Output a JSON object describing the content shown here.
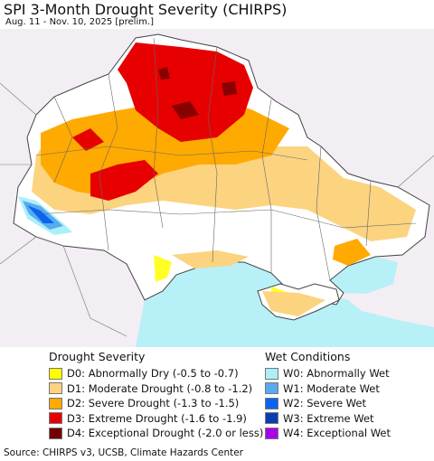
{
  "header": {
    "title": "SPI 3-Month Drought Severity (CHIRPS)",
    "subtitle": "Aug. 11 - Nov. 10, 2025 [prelim.]"
  },
  "map": {
    "colors": {
      "land_normal": "#ffffff",
      "land_outside": "#f2eef4",
      "sea": "#b8f0f7",
      "boundary": "#555555"
    }
  },
  "legend": {
    "drought": {
      "title": "Drought Severity",
      "items": [
        {
          "code": "D0",
          "label": "D0: Abnormally Dry (-0.5 to -0.7)",
          "color": "#ffff00"
        },
        {
          "code": "D1",
          "label": "D1: Moderate Drought (-0.8 to -1.2)",
          "color": "#fcd37f"
        },
        {
          "code": "D2",
          "label": "D2: Severe Drought (-1.3 to -1.5)",
          "color": "#ffaa00"
        },
        {
          "code": "D3",
          "label": "D3: Extreme Drought (-1.6 to -1.9)",
          "color": "#e60000"
        },
        {
          "code": "D4",
          "label": "D4: Exceptional Drought (-2.0 or less)",
          "color": "#730000"
        }
      ]
    },
    "wet": {
      "title": "Wet Conditions",
      "items": [
        {
          "code": "W0",
          "label": "W0: Abnormally Wet",
          "color": "#aaf0f8"
        },
        {
          "code": "W1",
          "label": "W1: Moderate Wet",
          "color": "#5aaaf0"
        },
        {
          "code": "W2",
          "label": "W2: Severe Wet",
          "color": "#0a64f0"
        },
        {
          "code": "W3",
          "label": "W3: Extreme Wet",
          "color": "#0a3cb4"
        },
        {
          "code": "W4",
          "label": "W4: Exceptional Wet",
          "color": "#aa00e6"
        }
      ]
    }
  },
  "footer": {
    "source": "Source: CHIRPS v3, UCSB, Climate Hazards Center"
  }
}
